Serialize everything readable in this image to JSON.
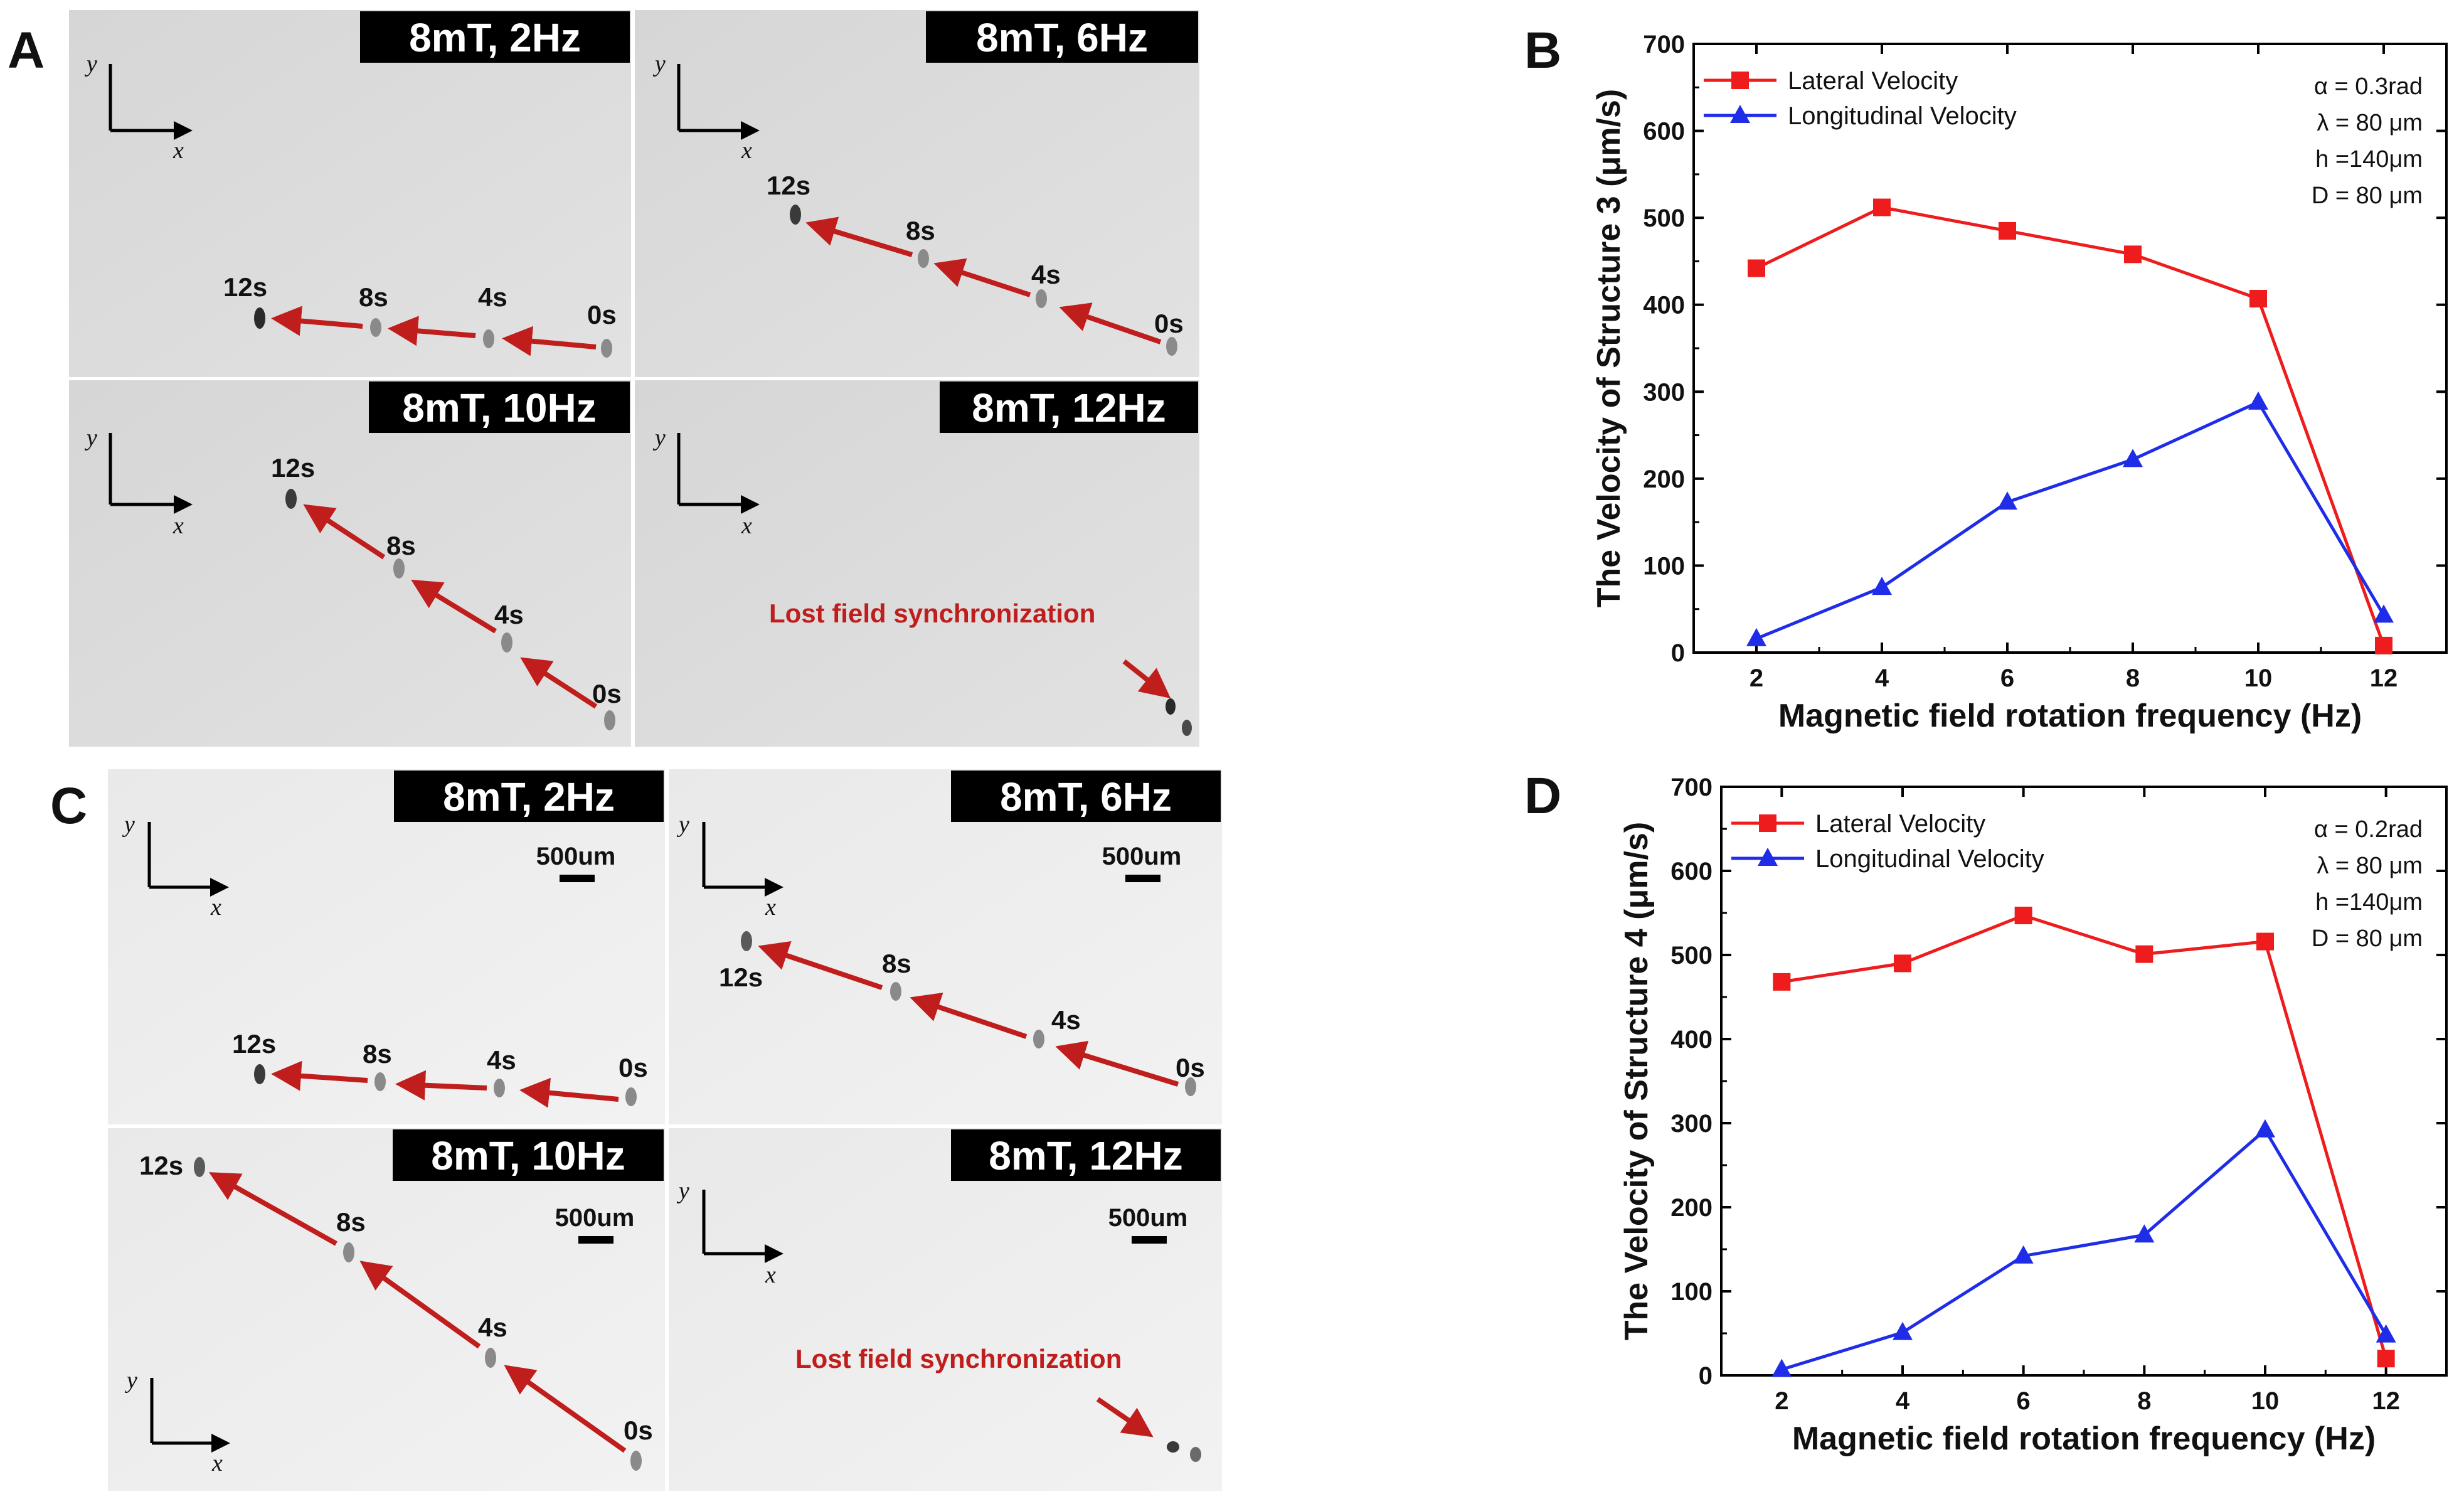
{
  "panel_letters": {
    "A": "A",
    "B": "B",
    "C": "C",
    "D": "D"
  },
  "micrographs": {
    "A": {
      "tiles": [
        {
          "title": "8mT,  2Hz",
          "times": [
            "12s",
            "8s",
            "4s",
            "0s"
          ]
        },
        {
          "title": "8mT,  6Hz",
          "times": [
            "12s",
            "8s",
            "4s",
            "0s"
          ]
        },
        {
          "title": "8mT,  10Hz",
          "times": [
            "12s",
            "8s",
            "4s",
            "0s"
          ]
        },
        {
          "title": "8mT,  12Hz",
          "note": "Lost field synchronization"
        }
      ]
    },
    "C": {
      "tiles": [
        {
          "title": "8mT,  2Hz",
          "scale": "500um",
          "times": [
            "12s",
            "8s",
            "4s",
            "0s"
          ]
        },
        {
          "title": "8mT,  6Hz",
          "scale": "500um",
          "times": [
            "12s",
            "8s",
            "4s",
            "0s"
          ]
        },
        {
          "title": "8mT,  10Hz",
          "scale": "500um",
          "times": [
            "12s",
            "8s",
            "4s",
            "0s"
          ]
        },
        {
          "title": "8mT,  12Hz",
          "scale": "500um",
          "note": "Lost field synchronization"
        }
      ]
    },
    "axis_x": "x",
    "axis_y": "y"
  },
  "colors": {
    "lateral": "#ee1c1c",
    "longitudinal": "#1f2de8",
    "arrow": "#c01d1d",
    "banner": "#000000"
  },
  "chart_data": [
    {
      "panel": "B",
      "type": "line",
      "title": "",
      "xlabel": "Magnetic field rotation frequency (Hz)",
      "ylabel": "The Velocity of Structure 3 (μm/s)",
      "x": [
        2,
        4,
        6,
        8,
        10,
        12
      ],
      "xlim": [
        1,
        13
      ],
      "ylim": [
        0,
        700
      ],
      "xticks": [
        2,
        4,
        6,
        8,
        10,
        12
      ],
      "yticks": [
        0,
        100,
        200,
        300,
        400,
        500,
        600,
        700
      ],
      "series": [
        {
          "name": "Lateral Velocity",
          "marker": "square",
          "values": [
            442,
            512,
            485,
            458,
            407,
            8
          ]
        },
        {
          "name": "Longitudinal Velocity",
          "marker": "triangle",
          "values": [
            16,
            75,
            173,
            222,
            288,
            43
          ]
        }
      ],
      "annotations": [
        "α = 0.3rad",
        "λ = 80 μm",
        "h =140μm",
        "D = 80 μm"
      ],
      "legend": "top-left",
      "grid": false
    },
    {
      "panel": "D",
      "type": "line",
      "title": "",
      "xlabel": "Magnetic field rotation frequency (Hz)",
      "ylabel": "The Velocity of Structure 4 (μm/s)",
      "x": [
        2,
        4,
        6,
        8,
        10,
        12
      ],
      "xlim": [
        1,
        13
      ],
      "ylim": [
        0,
        700
      ],
      "xticks": [
        2,
        4,
        6,
        8,
        10,
        12
      ],
      "yticks": [
        0,
        100,
        200,
        300,
        400,
        500,
        600,
        700
      ],
      "series": [
        {
          "name": "Lateral Velocity",
          "marker": "square",
          "values": [
            468,
            490,
            547,
            501,
            516,
            20
          ]
        },
        {
          "name": "Longitudinal Velocity",
          "marker": "triangle",
          "values": [
            7,
            51,
            142,
            167,
            292,
            48
          ]
        }
      ],
      "annotations": [
        "α = 0.2rad",
        "λ = 80 μm",
        "h =140μm",
        "D = 80 μm"
      ],
      "legend": "top-left",
      "grid": false
    }
  ]
}
